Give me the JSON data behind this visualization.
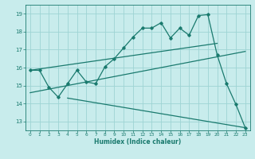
{
  "xlabel": "Humidex (Indice chaleur)",
  "bg_color": "#c8ecec",
  "grid_color": "#9ed4d4",
  "line_color": "#1a7a6e",
  "xlim": [
    -0.5,
    23.5
  ],
  "ylim": [
    12.5,
    19.5
  ],
  "yticks": [
    13,
    14,
    15,
    16,
    17,
    18,
    19
  ],
  "xticks": [
    0,
    1,
    2,
    3,
    4,
    5,
    6,
    7,
    8,
    9,
    10,
    11,
    12,
    13,
    14,
    15,
    16,
    17,
    18,
    19,
    20,
    21,
    22,
    23
  ],
  "line1_x": [
    0,
    1,
    2,
    3,
    4,
    5,
    6,
    7,
    8,
    9,
    10,
    11,
    12,
    13,
    14,
    15,
    16,
    17,
    18,
    19,
    20,
    21,
    22,
    23
  ],
  "line1_y": [
    15.85,
    15.85,
    14.9,
    14.35,
    15.1,
    15.85,
    15.2,
    15.1,
    16.05,
    16.5,
    17.1,
    17.7,
    18.2,
    18.2,
    18.5,
    17.65,
    18.2,
    17.8,
    18.9,
    18.95,
    16.7,
    15.1,
    13.95,
    12.65
  ],
  "line2_x": [
    0,
    20
  ],
  "line2_y": [
    15.85,
    17.35
  ],
  "line3_x": [
    0,
    23
  ],
  "line3_y": [
    14.6,
    16.9
  ],
  "line4_x": [
    4,
    23
  ],
  "line4_y": [
    14.3,
    12.65
  ]
}
